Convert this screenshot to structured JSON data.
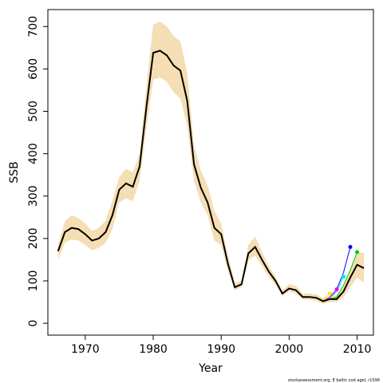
{
  "chart_data": {
    "type": "line",
    "xlabel": "Year",
    "ylabel": "SSB",
    "note": "stockassessment.org, E baltic cod ageI, r1596",
    "xlim": [
      1964.5,
      2012.4
    ],
    "ylim": [
      -28,
      740
    ],
    "xticks": [
      1970,
      1980,
      1990,
      2000,
      2010
    ],
    "yticks": [
      0,
      100,
      200,
      300,
      400,
      500,
      600,
      700
    ],
    "x": [
      1966,
      1967,
      1968,
      1969,
      1970,
      1971,
      1972,
      1973,
      1974,
      1975,
      1976,
      1977,
      1978,
      1979,
      1980,
      1981,
      1982,
      1983,
      1984,
      1985,
      1986,
      1987,
      1988,
      1989,
      1990,
      1991,
      1992,
      1993,
      1994,
      1995,
      1996,
      1997,
      1998,
      1999,
      2000,
      2001,
      2002,
      2003,
      2004,
      2005,
      2006,
      2007,
      2008,
      2009,
      2010,
      2011
    ],
    "band": {
      "color": "#f5deb3",
      "upper": [
        185,
        240,
        255,
        248,
        235,
        218,
        225,
        242,
        290,
        345,
        365,
        355,
        400,
        560,
        705,
        712,
        700,
        678,
        665,
        590,
        420,
        360,
        325,
        265,
        235,
        160,
        95,
        100,
        185,
        205,
        168,
        135,
        110,
        78,
        92,
        88,
        70,
        70,
        68,
        60,
        65,
        67,
        88,
        130,
        168,
        165
      ],
      "lower": [
        150,
        190,
        198,
        195,
        185,
        172,
        178,
        190,
        222,
        285,
        295,
        288,
        335,
        460,
        575,
        580,
        570,
        545,
        530,
        465,
        335,
        285,
        255,
        195,
        185,
        122,
        78,
        85,
        148,
        160,
        135,
        110,
        90,
        65,
        75,
        70,
        56,
        56,
        53,
        46,
        50,
        50,
        62,
        85,
        108,
        95
      ]
    },
    "series": [
      {
        "color": "#000000",
        "values": [
          170,
          215,
          225,
          222,
          210,
          195,
          200,
          215,
          255,
          315,
          330,
          322,
          370,
          510,
          638,
          643,
          632,
          608,
          596,
          525,
          375,
          320,
          285,
          225,
          210,
          140,
          85,
          92,
          165,
          180,
          150,
          122,
          100,
          70,
          82,
          78,
          62,
          62,
          60,
          52,
          57,
          57,
          75,
          108,
          138,
          130
        ]
      }
    ],
    "retro": [
      {
        "color": "#0000ff",
        "x": [
          2005,
          2006,
          2007,
          2008,
          2009
        ],
        "values": [
          52,
          60,
          80,
          120,
          180
        ]
      },
      {
        "color": "#00cc00",
        "x": [
          2006,
          2007,
          2008,
          2009,
          2010
        ],
        "values": [
          57,
          62,
          90,
          125,
          168
        ]
      },
      {
        "color": "#00e5ee",
        "x": [
          2005,
          2006,
          2007,
          2008
        ],
        "values": [
          52,
          60,
          75,
          110
        ]
      },
      {
        "color": "#ee00ee",
        "x": [
          2005,
          2006,
          2007
        ],
        "values": [
          52,
          62,
          80
        ]
      },
      {
        "color": "#eeee00",
        "x": [
          2004,
          2005,
          2006
        ],
        "values": [
          60,
          55,
          70
        ]
      }
    ]
  }
}
